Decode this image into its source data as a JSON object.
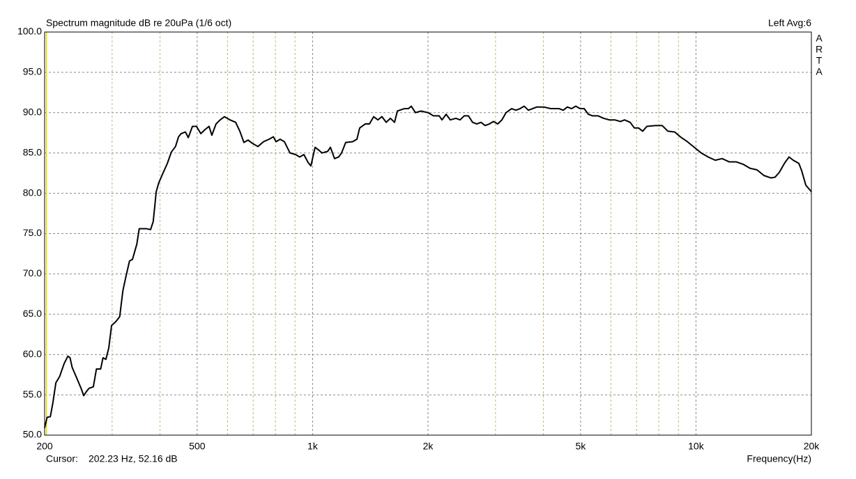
{
  "chart_data": {
    "type": "line",
    "title": "Spectrum magnitude dB re 20uPa (1/6 oct)",
    "channel_label": "Left  Avg:6",
    "side_label": [
      "A",
      "R",
      "T",
      "A"
    ],
    "x_label": "Frequency(Hz)",
    "cursor": {
      "label": "Cursor:",
      "x": 202.23,
      "value_label": "202.23 Hz, 52.16 dB",
      "color": "#e0e000"
    },
    "xscale": "log",
    "xlim": [
      200,
      20000
    ],
    "ylim": [
      50,
      100
    ],
    "grid": true,
    "color": "#000000",
    "xticks": [
      200,
      500,
      {
        "value": 1000,
        "label": "1k"
      },
      {
        "value": 2000,
        "label": "2k"
      },
      {
        "value": 5000,
        "label": "5k"
      },
      {
        "value": 10000,
        "label": "10k"
      },
      {
        "value": 20000,
        "label": "20k"
      }
    ],
    "minor_xgrid": [
      300,
      400,
      600,
      700,
      800,
      900,
      3000,
      4000,
      6000,
      7000,
      8000,
      9000
    ],
    "yticks": [
      {
        "value": 50,
        "label": "50.0"
      },
      {
        "value": 55,
        "label": "55.0"
      },
      {
        "value": 60,
        "label": "60.0"
      },
      {
        "value": 65,
        "label": "65.0"
      },
      {
        "value": 70,
        "label": "70.0"
      },
      {
        "value": 75,
        "label": "75.0"
      },
      {
        "value": 80,
        "label": "80.0"
      },
      {
        "value": 85,
        "label": "85.0"
      },
      {
        "value": 90,
        "label": "90.0"
      },
      {
        "value": 95,
        "label": "95.0"
      },
      {
        "value": 100,
        "label": "100.0"
      }
    ],
    "x": [
      200,
      203,
      207,
      210,
      214,
      219,
      225,
      230,
      233,
      236,
      242,
      249,
      253,
      257,
      261,
      268,
      273,
      280,
      284,
      289,
      294,
      299,
      307,
      314,
      320,
      325,
      333,
      339,
      348,
      353,
      369,
      378,
      384,
      391,
      397,
      408,
      418,
      428,
      439,
      447,
      454,
      466,
      474,
      486,
      498,
      511,
      524,
      537,
      546,
      560,
      574,
      589,
      609,
      630,
      646,
      662,
      679,
      696,
      720,
      745,
      770,
      790,
      803,
      823,
      844,
      873,
      903,
      926,
      949,
      974,
      990,
      1015,
      1041,
      1058,
      1095,
      1113,
      1141,
      1170,
      1190,
      1220,
      1272,
      1305,
      1327,
      1372,
      1407,
      1443,
      1480,
      1517,
      1556,
      1596,
      1636,
      1664,
      1735,
      1779,
      1809,
      1855,
      1918,
      2000,
      2068,
      2139,
      2175,
      2230,
      2287,
      2365,
      2425,
      2486,
      2550,
      2614,
      2681,
      2749,
      2819,
      2891,
      2964,
      3040,
      3117,
      3196,
      3305,
      3390,
      3476,
      3564,
      3655,
      3748,
      3843,
      4007,
      4179,
      4285,
      4394,
      4506,
      4620,
      4738,
      4859,
      4982,
      5109,
      5239,
      5372,
      5554,
      5744,
      5939,
      6142,
      6351,
      6512,
      6735,
      6906,
      7082,
      7262,
      7446,
      7829,
      8164,
      8444,
      8803,
      9104,
      9494,
      9899,
      10321,
      10763,
      11226,
      11703,
      12205,
      12727,
      13271,
      13837,
      14429,
      15046,
      15687,
      16087,
      16495,
      17055,
      17489,
      17933,
      18553,
      18866,
      19343,
      19667,
      20000
    ],
    "values": [
      50.9,
      52.2,
      52.3,
      53.9,
      56.5,
      57.3,
      58.9,
      59.8,
      59.6,
      58.4,
      57.2,
      55.8,
      54.9,
      55.4,
      55.8,
      56.0,
      58.2,
      58.2,
      59.6,
      59.4,
      60.8,
      63.6,
      64.1,
      64.7,
      67.9,
      69.4,
      71.6,
      71.8,
      73.7,
      75.6,
      75.6,
      75.5,
      76.5,
      80.2,
      81.3,
      82.6,
      83.7,
      85.1,
      85.8,
      87.0,
      87.4,
      87.6,
      86.9,
      88.3,
      88.3,
      87.4,
      87.9,
      88.3,
      87.2,
      88.6,
      89.1,
      89.5,
      89.1,
      88.8,
      87.7,
      86.3,
      86.6,
      86.2,
      85.8,
      86.4,
      86.7,
      87.0,
      86.4,
      86.7,
      86.4,
      85.0,
      84.8,
      84.5,
      84.8,
      83.8,
      83.4,
      85.7,
      85.3,
      85.0,
      85.2,
      85.7,
      84.3,
      84.5,
      85.0,
      86.3,
      86.4,
      86.7,
      88.1,
      88.6,
      88.6,
      89.5,
      89.1,
      89.5,
      88.8,
      89.3,
      88.8,
      90.2,
      90.5,
      90.5,
      90.8,
      90.0,
      90.2,
      90.0,
      89.6,
      89.6,
      89.1,
      89.8,
      89.1,
      89.3,
      89.1,
      89.6,
      89.6,
      88.8,
      88.6,
      88.8,
      88.4,
      88.6,
      88.9,
      88.6,
      89.1,
      90.0,
      90.5,
      90.3,
      90.5,
      90.8,
      90.3,
      90.5,
      90.7,
      90.7,
      90.5,
      90.5,
      90.5,
      90.3,
      90.7,
      90.5,
      90.8,
      90.5,
      90.5,
      89.8,
      89.6,
      89.6,
      89.3,
      89.1,
      89.1,
      88.9,
      89.1,
      88.8,
      88.1,
      88.1,
      87.7,
      88.3,
      88.4,
      88.4,
      87.7,
      87.6,
      87.0,
      86.4,
      85.7,
      85.0,
      84.5,
      84.1,
      84.3,
      83.9,
      83.9,
      83.6,
      83.1,
      82.9,
      82.2,
      81.9,
      82.0,
      82.6,
      83.8,
      84.5,
      84.1,
      83.7,
      82.8,
      81.0,
      80.6,
      80.2
    ]
  }
}
